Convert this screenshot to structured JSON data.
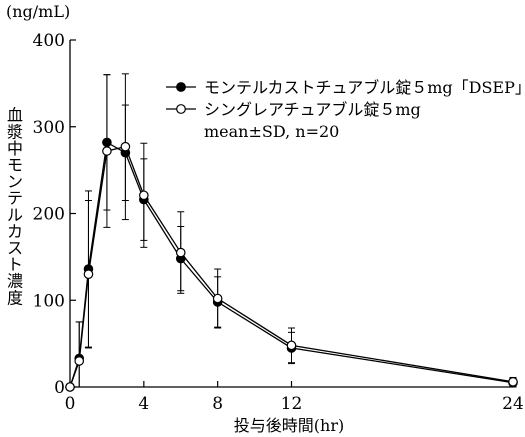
{
  "chart_data": {
    "type": "line",
    "unit_label": "(ng/mL)",
    "ylabel": "血漿中モンテルカスト濃度",
    "xlabel": "投与後時間(hr)",
    "xlim": [
      0,
      24
    ],
    "ylim": [
      0,
      400
    ],
    "x_ticks": [
      0,
      4,
      8,
      12,
      24
    ],
    "y_ticks": [
      0,
      100,
      200,
      300,
      400
    ],
    "grid": false,
    "legend_position": "top-right",
    "legend_note": "mean±SD, n=20",
    "series": [
      {
        "name": "モンテルカストチュアブル錠５mg「DSEP」",
        "marker": "filled-circle",
        "points": [
          {
            "x": 0,
            "y": 0,
            "sd": 0
          },
          {
            "x": 0.5,
            "y": 33,
            "sd": 42
          },
          {
            "x": 1,
            "y": 136,
            "sd": 90
          },
          {
            "x": 2,
            "y": 282,
            "sd": 78
          },
          {
            "x": 3,
            "y": 270,
            "sd": 55
          },
          {
            "x": 4,
            "y": 216,
            "sd": 47
          },
          {
            "x": 6,
            "y": 148,
            "sd": 37
          },
          {
            "x": 8,
            "y": 98,
            "sd": 29
          },
          {
            "x": 12,
            "y": 45,
            "sd": 18
          },
          {
            "x": 24,
            "y": 5,
            "sd": 5
          }
        ]
      },
      {
        "name": "シングレアチュアブル錠５mg",
        "marker": "open-circle",
        "points": [
          {
            "x": 0,
            "y": 0,
            "sd": 0
          },
          {
            "x": 0.5,
            "y": 30,
            "sd": 45
          },
          {
            "x": 1,
            "y": 130,
            "sd": 85
          },
          {
            "x": 2,
            "y": 272,
            "sd": 88
          },
          {
            "x": 3,
            "y": 277,
            "sd": 84
          },
          {
            "x": 4,
            "y": 221,
            "sd": 60
          },
          {
            "x": 6,
            "y": 155,
            "sd": 47
          },
          {
            "x": 8,
            "y": 102,
            "sd": 34
          },
          {
            "x": 12,
            "y": 48,
            "sd": 20
          },
          {
            "x": 24,
            "y": 6,
            "sd": 5
          }
        ]
      }
    ]
  }
}
